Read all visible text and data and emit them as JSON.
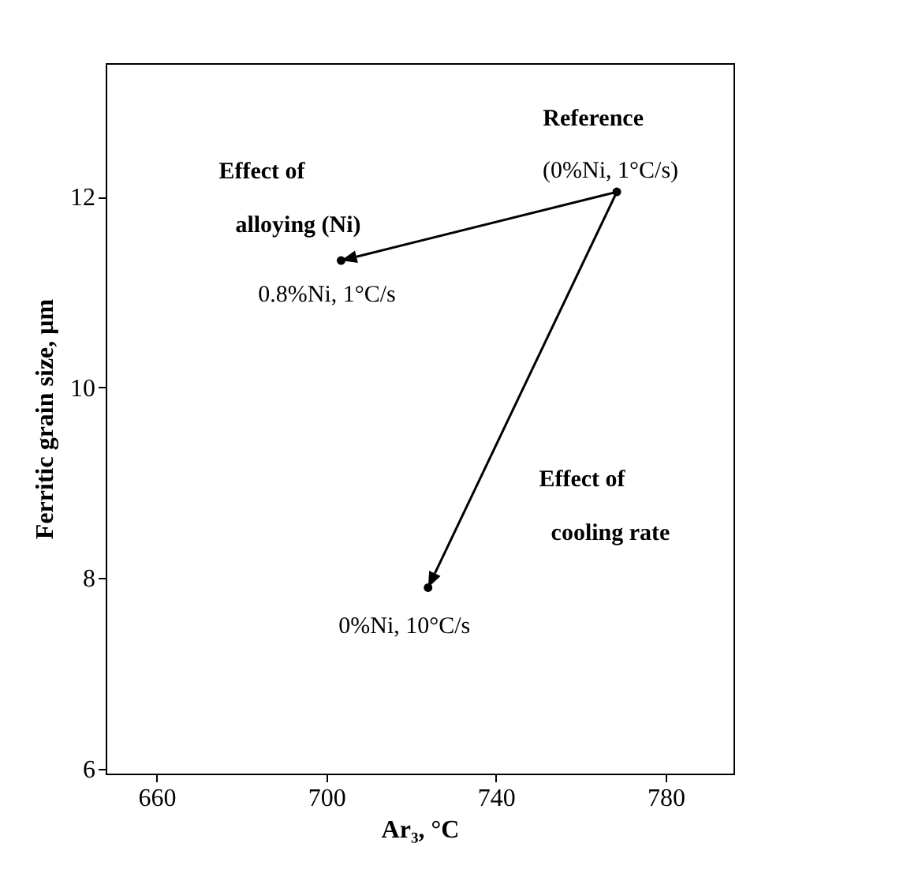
{
  "chart_data": {
    "type": "scatter",
    "xlabel": "Ar₃, °C",
    "ylabel": "Ferritic grain size, μm",
    "x": [
      768.5,
      703.5,
      724
    ],
    "values": [
      12.05,
      11.33,
      7.9
    ],
    "color": "#000000",
    "marker": "circle",
    "xlim": [
      648,
      796
    ],
    "xticks": [
      660,
      700,
      740,
      780
    ],
    "ylim": [
      5.95,
      13.4
    ],
    "yticks": [
      6,
      8,
      10,
      12
    ],
    "grid": false,
    "annotations": [
      {
        "text": "Reference",
        "x": 768.5,
        "y": 12.05
      },
      {
        "text": "(0%Ni, 1°C/s)",
        "x": 768.5,
        "y": 12.05
      },
      "Effect of",
      "alloying (Ni)",
      {
        "text": "0.8%Ni, 1°C/s",
        "x": 703.5,
        "y": 11.33
      },
      "Effect of",
      "cooling rate",
      {
        "text": "0%Ni, 10°C/s",
        "x": 724,
        "y": 7.9
      }
    ]
  }
}
